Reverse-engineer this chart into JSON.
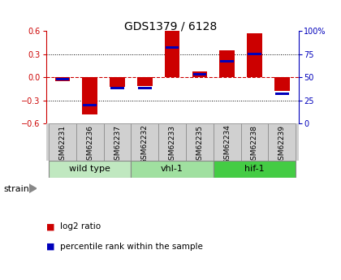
{
  "title": "GDS1379 / 6128",
  "samples": [
    "GSM62231",
    "GSM62236",
    "GSM62237",
    "GSM62232",
    "GSM62233",
    "GSM62235",
    "GSM62234",
    "GSM62238",
    "GSM62239"
  ],
  "log2_ratio": [
    -0.05,
    -0.48,
    -0.13,
    -0.12,
    0.6,
    0.07,
    0.35,
    0.57,
    -0.18
  ],
  "percentile": [
    48,
    20,
    38,
    38,
    82,
    53,
    67,
    75,
    32
  ],
  "ylim_left": [
    -0.6,
    0.6
  ],
  "ylim_right": [
    0,
    100
  ],
  "yticks_left": [
    -0.6,
    -0.3,
    0.0,
    0.3,
    0.6
  ],
  "yticks_right": [
    0,
    25,
    50,
    75,
    100
  ],
  "yticklabels_right": [
    "0",
    "25",
    "50",
    "75",
    "100%"
  ],
  "bar_color_red": "#cc0000",
  "bar_color_blue": "#0000bb",
  "zero_line_color": "#cc0000",
  "grid_color": "#000000",
  "bg_color": "#ffffff",
  "plot_bg": "#ffffff",
  "label_bg": "#d0d0d0",
  "groups": [
    {
      "label": "wild type",
      "start": 0,
      "end": 3,
      "color": "#c0e8c0"
    },
    {
      "label": "vhl-1",
      "start": 3,
      "end": 6,
      "color": "#a0e0a0"
    },
    {
      "label": "hif-1",
      "start": 6,
      "end": 9,
      "color": "#44cc44"
    }
  ],
  "strain_label": "strain",
  "legend_red": "log2 ratio",
  "legend_blue": "percentile rank within the sample"
}
